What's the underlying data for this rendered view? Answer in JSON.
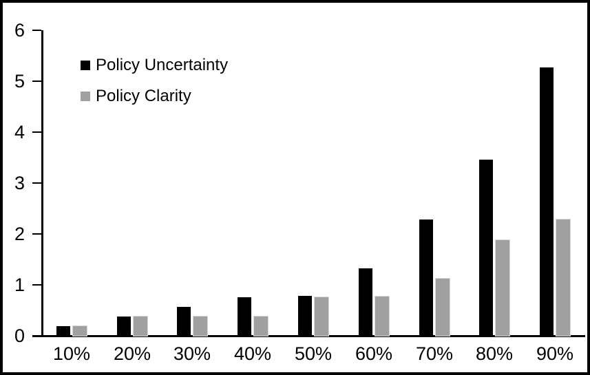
{
  "frame": {
    "background": "#ffffff",
    "border_color": "#000000"
  },
  "chart_data": {
    "type": "bar",
    "title": "",
    "xlabel": "",
    "ylabel": "",
    "categories": [
      "10%",
      "20%",
      "30%",
      "40%",
      "50%",
      "60%",
      "70%",
      "80%",
      "90%"
    ],
    "series": [
      {
        "name": "Policy Uncertainty",
        "color": "#000000",
        "values": [
          0.19,
          0.38,
          0.57,
          0.76,
          0.78,
          1.32,
          2.28,
          3.46,
          5.27
        ]
      },
      {
        "name": "Policy Clarity",
        "color": "#a0a0a0",
        "values": [
          0.19,
          0.38,
          0.38,
          0.38,
          0.76,
          0.77,
          1.12,
          1.88,
          2.28
        ]
      }
    ],
    "ylim": [
      0,
      6
    ],
    "yticks": [
      0,
      1,
      2,
      3,
      4,
      5,
      6
    ],
    "grid": false,
    "legend_position": "top-left"
  }
}
